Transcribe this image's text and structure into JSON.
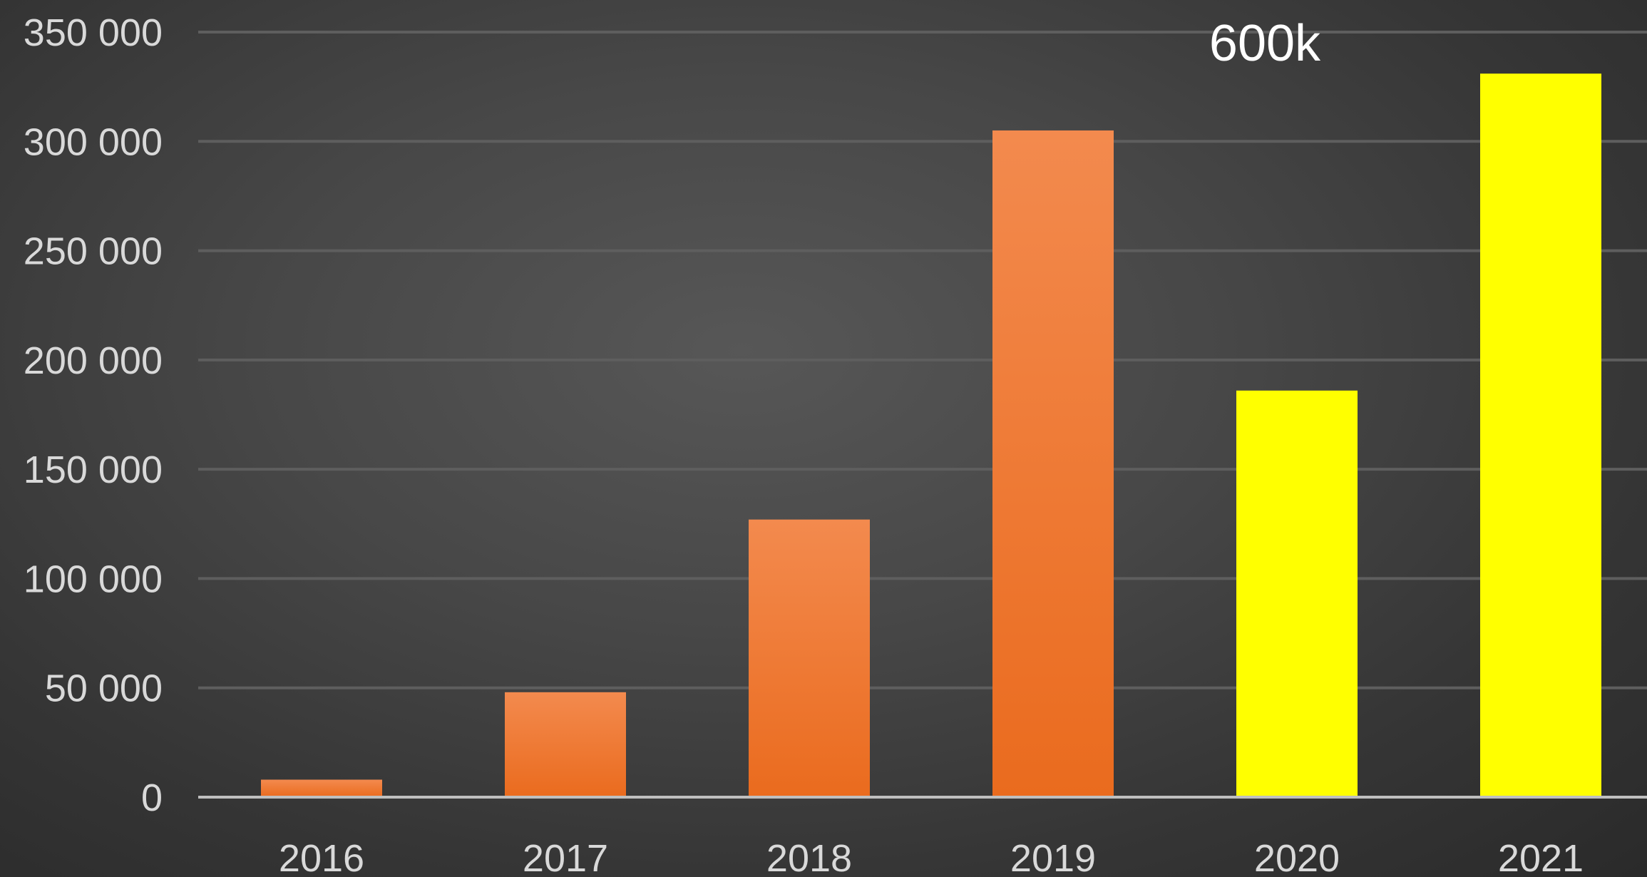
{
  "chart_data": {
    "type": "bar",
    "title": "",
    "xlabel": "",
    "ylabel": "",
    "categories": [
      "2016",
      "2017",
      "2018",
      "2019",
      "2020",
      "2021"
    ],
    "values": [
      8000,
      48000,
      127000,
      305000,
      186000,
      331000
    ],
    "ylim": [
      0,
      350000
    ],
    "yticks": [
      0,
      50000,
      100000,
      150000,
      200000,
      250000,
      300000,
      350000
    ],
    "ytick_labels": [
      "0",
      "50 000",
      "100 000",
      "150 000",
      "200 000",
      "250 000",
      "300 000",
      "350 000"
    ],
    "grid": true,
    "legend": "none",
    "bar_colors": [
      "#f07a30",
      "#f07a30",
      "#f07a30",
      "#f07a30",
      "#ffff00",
      "#ffff00"
    ],
    "annotations": [
      {
        "text": "600k",
        "anchor_category": "2020"
      }
    ]
  },
  "colors": {
    "background": "#404040",
    "gridline": "#5e5e5e",
    "axis": "#bfbfbf",
    "tick_text": "#d9d9d9",
    "annotation_text": "#ffffff"
  }
}
